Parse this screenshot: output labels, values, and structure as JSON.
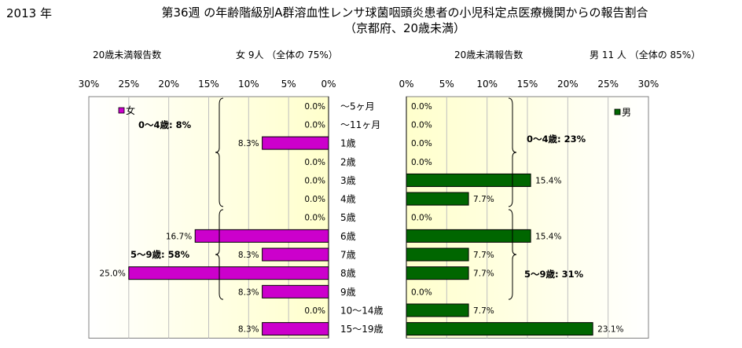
{
  "header": {
    "year": "2013 年",
    "title_line1": "第36週 の年齢階級別A群溶血性レンサ球菌咽頭炎患者の小児科定点医療機関からの報告割合",
    "title_line2": "（京都府、20歳未満）"
  },
  "female_header": {
    "label": "20歳未満報告数",
    "count": "女  9人  （全体の   75%）"
  },
  "male_header": {
    "label": "20歳未満報告数",
    "count": "男  11 人  （全体の   85%）"
  },
  "colors": {
    "female": "#cc00cc",
    "male": "#006600",
    "plot_bg_edge": "#ffffcc"
  },
  "chart_data": [
    {
      "type": "bar",
      "orientation": "horizontal",
      "direction": "right-to-left",
      "categories": [
        "～5ヶ月",
        "～11ヶ月",
        "1歳",
        "2歳",
        "3歳",
        "4歳",
        "5歳",
        "6歳",
        "7歳",
        "8歳",
        "9歳",
        "10～14歳",
        "15～19歳"
      ],
      "series": [
        {
          "name": "女",
          "values": [
            0.0,
            0.0,
            8.3,
            0.0,
            0.0,
            0.0,
            0.0,
            16.7,
            8.3,
            25.0,
            8.3,
            0.0,
            8.3
          ]
        }
      ],
      "value_labels": [
        "0.0%",
        "0.0%",
        "8.3%",
        "0.0%",
        "0.0%",
        "0.0%",
        "0.0%",
        "16.7%",
        "8.3%",
        "25.0%",
        "8.3%",
        "0.0%",
        "8.3%"
      ],
      "xticks": [
        "30%",
        "25%",
        "20%",
        "15%",
        "10%",
        "5%",
        "0%"
      ],
      "xlim": [
        0,
        30
      ],
      "legend": "top-left",
      "grid": true,
      "annotations": [
        "0～4歳:  8%",
        "5～9歳:  58%"
      ]
    },
    {
      "type": "bar",
      "orientation": "horizontal",
      "direction": "left-to-right",
      "categories": [
        "～5ヶ月",
        "～11ヶ月",
        "1歳",
        "2歳",
        "3歳",
        "4歳",
        "5歳",
        "6歳",
        "7歳",
        "8歳",
        "9歳",
        "10～14歳",
        "15～19歳"
      ],
      "series": [
        {
          "name": "男",
          "values": [
            0.0,
            0.0,
            0.0,
            0.0,
            15.4,
            7.7,
            0.0,
            15.4,
            7.7,
            7.7,
            0.0,
            7.7,
            23.1
          ]
        }
      ],
      "value_labels": [
        "0.0%",
        "0.0%",
        "0.0%",
        "0.0%",
        "15.4%",
        "7.7%",
        "0.0%",
        "15.4%",
        "7.7%",
        "7.7%",
        "0.0%",
        "7.7%",
        "23.1%"
      ],
      "xticks": [
        "0%",
        "5%",
        "10%",
        "15%",
        "20%",
        "25%",
        "30%"
      ],
      "xlim": [
        0,
        30
      ],
      "legend": "top-right",
      "grid": true,
      "annotations": [
        "0～4歳:  23%",
        "5～9歳:  31%"
      ]
    }
  ]
}
